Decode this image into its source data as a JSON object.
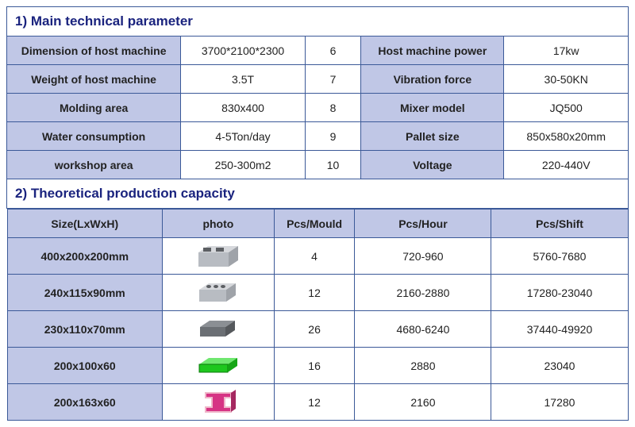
{
  "section1": {
    "title": "1) Main technical parameter",
    "rows": [
      {
        "l_label": "Dimension of host machine",
        "l_value": "3700*2100*2300",
        "num": "6",
        "r_label": "Host machine power",
        "r_value": "17kw"
      },
      {
        "l_label": "Weight of host machine",
        "l_value": "3.5T",
        "num": "7",
        "r_label": "Vibration force",
        "r_value": "30-50KN"
      },
      {
        "l_label": "Molding area",
        "l_value": "830x400",
        "num": "8",
        "r_label": "Mixer model",
        "r_value": "JQ500"
      },
      {
        "l_label": "Water consumption",
        "l_value": "4-5Ton/day",
        "num": "9",
        "r_label": "Pallet size",
        "r_value": "850x580x20mm"
      },
      {
        "l_label": "workshop area",
        "l_value": "250-300m2",
        "num": "10",
        "r_label": "Voltage",
        "r_value": "220-440V"
      }
    ],
    "colWidths": [
      "28%",
      "20%",
      "9%",
      "23%",
      "20%"
    ],
    "labelBg": "#c0c7e6"
  },
  "section2": {
    "title": "2) Theoretical production capacity",
    "headers": [
      "Size(LxWxH)",
      "photo",
      "Pcs/Mould",
      "Pcs/Hour",
      "Pcs/Shift"
    ],
    "colWidths": [
      "25%",
      "18%",
      "13%",
      "22%",
      "22%"
    ],
    "rows": [
      {
        "size": "400x200x200mm",
        "icon": "hollow-block-large",
        "pcs_mould": "4",
        "pcs_hour": "720-960",
        "pcs_shift": "5760-7680"
      },
      {
        "size": "240x115x90mm",
        "icon": "hollow-block-small",
        "pcs_mould": "12",
        "pcs_hour": "2160-2880",
        "pcs_shift": "17280-23040"
      },
      {
        "size": "230x110x70mm",
        "icon": "solid-brick",
        "pcs_mould": "26",
        "pcs_hour": "4680-6240",
        "pcs_shift": "37440-49920"
      },
      {
        "size": "200x100x60",
        "icon": "green-paver",
        "pcs_mould": "16",
        "pcs_hour": "2880",
        "pcs_shift": "23040"
      },
      {
        "size": "200x163x60",
        "icon": "i-paver",
        "pcs_mould": "12",
        "pcs_hour": "2160",
        "pcs_shift": "17280"
      }
    ],
    "icons": {
      "hollow-block-large": {
        "fill": "#b8bcc2",
        "shape": "cuboid-2holes"
      },
      "hollow-block-small": {
        "fill": "#b8bcc2",
        "shape": "cuboid-3holes"
      },
      "solid-brick": {
        "fill": "#6b6f74",
        "shape": "cuboid-solid"
      },
      "green-paver": {
        "fill": "#1ec71e",
        "shape": "flat-rect"
      },
      "i-paver": {
        "fill": "#d63384",
        "shape": "i-shape"
      }
    }
  },
  "style": {
    "border_color": "#3b5998",
    "header_bg": "#c0c7e6",
    "title_color": "#1a237e",
    "font_size_body": 14,
    "font_size_title": 17
  }
}
